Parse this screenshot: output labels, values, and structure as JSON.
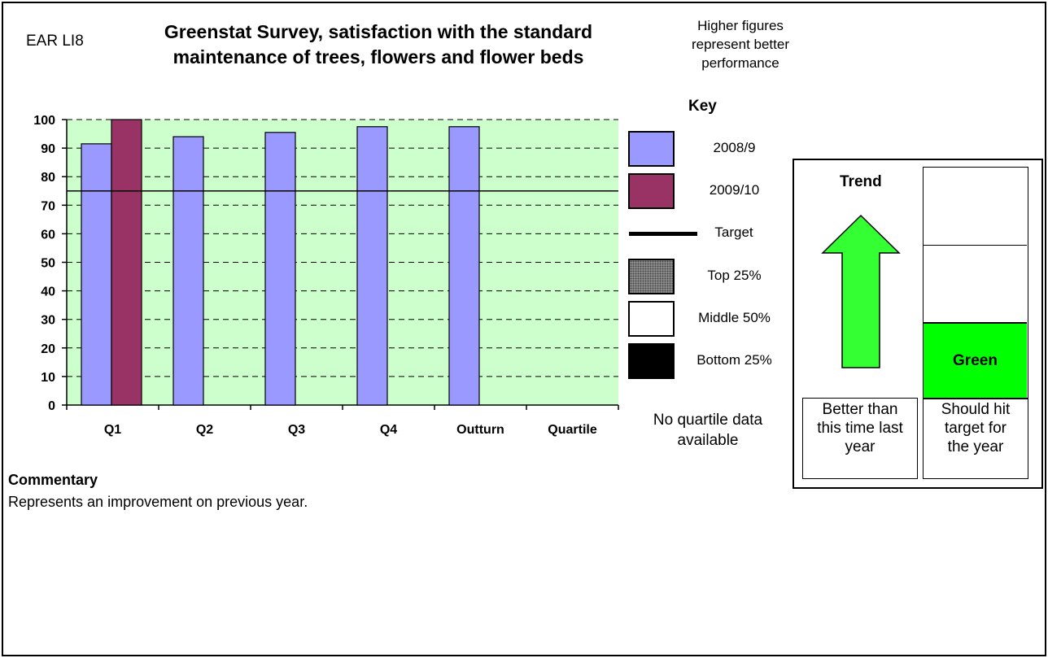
{
  "header": {
    "code": "EAR LI8",
    "title_line1": "Greenstat Survey, satisfaction with the standard",
    "title_line2": "maintenance of trees, flowers and flower beds",
    "note_line1": "Higher figures",
    "note_line2": "represent better",
    "note_line3": "performance"
  },
  "chart_data": {
    "type": "bar",
    "categories": [
      "Q1",
      "Q2",
      "Q3",
      "Q4",
      "Outturn",
      "Quartile"
    ],
    "series": [
      {
        "name": "2008/9",
        "values": [
          91.5,
          94,
          95.5,
          97.5,
          97.5,
          null
        ],
        "color": "#9999ff"
      },
      {
        "name": "2009/10",
        "values": [
          100,
          null,
          null,
          null,
          null,
          null
        ],
        "color": "#993366"
      }
    ],
    "target": 75,
    "ylim": [
      0,
      100
    ],
    "yticks": [
      "0",
      "10",
      "20",
      "30",
      "40",
      "50",
      "60",
      "70",
      "80",
      "90",
      "100"
    ],
    "background": "#ccffcc",
    "grid": true
  },
  "key": {
    "title": "Key",
    "items": [
      {
        "label": "2008/9",
        "swatch": "#9999ff"
      },
      {
        "label": "2009/10",
        "swatch": "#993366"
      },
      {
        "label": "Target",
        "swatch": "line"
      },
      {
        "label": "Top 25%",
        "swatch": "hatch"
      },
      {
        "label": "Middle 50%",
        "swatch": "#ffffff"
      },
      {
        "label": "Bottom 25%",
        "swatch": "#000000"
      }
    ]
  },
  "quartile_note": {
    "line1": "No quartile data",
    "line2": "available"
  },
  "status": {
    "trend_label": "Trend",
    "trend_direction": "up",
    "trend_color": "#33ff33",
    "rag_label": "Green",
    "rag_color": "#00ff00",
    "trend_text": [
      "Better than",
      "this time last",
      "year"
    ],
    "target_text": [
      "Should hit",
      "target for",
      "the year"
    ]
  },
  "commentary": {
    "title": "Commentary",
    "text": "Represents an improvement on previous year."
  }
}
